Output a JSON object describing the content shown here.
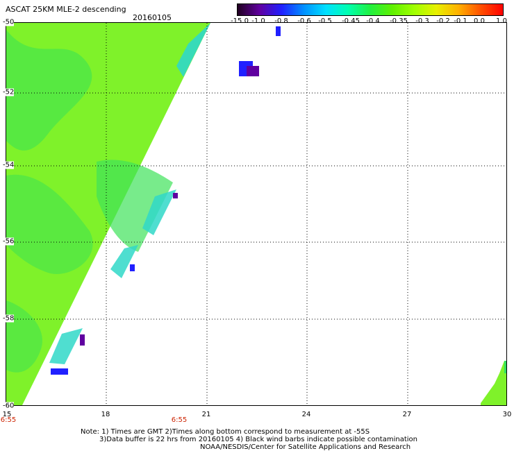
{
  "header": {
    "title": "ASCAT 25KM MLE-2 descending",
    "date": "20160105"
  },
  "colorbar": {
    "labels": [
      "-15.0",
      "-1.0",
      "-0.8",
      "-0.6",
      "-0.5",
      "-0.45",
      "-0.4",
      "-0.35",
      "-0.3",
      "-0.2",
      "-0.1",
      "0.0",
      "1.0"
    ],
    "colors": [
      "#200020",
      "#6000a0",
      "#2020ff",
      "#0090ff",
      "#00e0ff",
      "#00ffb0",
      "#20f040",
      "#60f000",
      "#a0ff00",
      "#e8f000",
      "#ffb000",
      "#ff5000",
      "#ff0000"
    ]
  },
  "axes": {
    "y_labels": [
      "-50",
      "-52",
      "-54",
      "-56",
      "-58",
      "-60"
    ],
    "x_labels": [
      "15",
      "18",
      "21",
      "24",
      "27",
      "30"
    ],
    "time_labels": [
      "6:55",
      "6:55"
    ]
  },
  "notes": {
    "line1": "Note: 1) Times are GMT 2)Times along bottom correspond to measurement at -55S",
    "line2": "3)Data buffer is 22 hrs from 20160105 4) Black wind barbs indicate possible contamination",
    "line3": "NOAA/NESDIS/Center for Satellite Applications and Research"
  }
}
